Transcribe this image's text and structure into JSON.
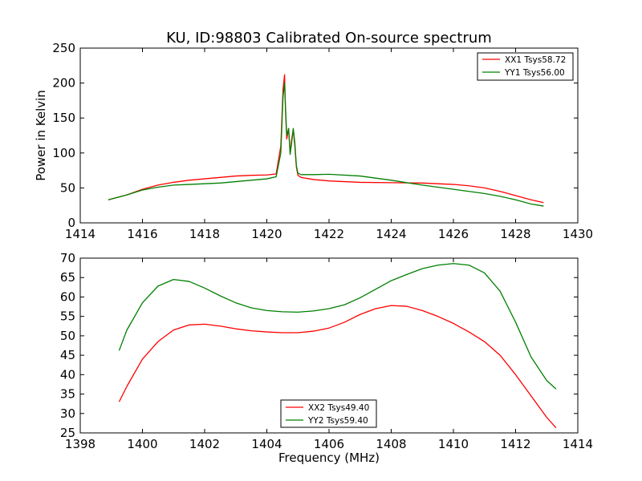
{
  "chart_data": [
    {
      "type": "line",
      "title": "KU, ID:98803 Calibrated On-source spectrum",
      "xlabel": "",
      "ylabel": "Power in Kelvin",
      "xlim": [
        1414,
        1430
      ],
      "ylim": [
        0,
        250
      ],
      "xticks": [
        1414,
        1416,
        1418,
        1420,
        1422,
        1424,
        1426,
        1428,
        1430
      ],
      "yticks": [
        0,
        50,
        100,
        150,
        200,
        250
      ],
      "legend_position": "top-right",
      "grid": false,
      "series": [
        {
          "name": "XX1 Tsys58.72",
          "color": "#ff0000",
          "x": [
            1414.9,
            1415.5,
            1416.0,
            1416.5,
            1417.0,
            1417.5,
            1418.0,
            1418.5,
            1419.0,
            1419.5,
            1420.0,
            1420.3,
            1420.45,
            1420.52,
            1420.57,
            1420.6,
            1420.64,
            1420.7,
            1420.75,
            1420.8,
            1420.85,
            1420.9,
            1420.95,
            1421.0,
            1421.1,
            1421.5,
            1422.0,
            1423.0,
            1424.0,
            1425.0,
            1426.0,
            1426.5,
            1427.0,
            1427.5,
            1428.0,
            1428.5,
            1428.9
          ],
          "y": [
            33,
            40,
            48,
            54,
            58,
            61,
            63,
            65,
            67,
            68,
            68.5,
            70,
            110,
            190,
            212,
            160,
            120,
            135,
            100,
            120,
            133,
            110,
            80,
            68,
            65,
            62,
            60,
            58,
            57.5,
            57,
            55,
            53,
            50,
            45,
            39,
            33,
            29
          ]
        },
        {
          "name": "YY1 Tsys56.00",
          "color": "#008000",
          "x": [
            1414.9,
            1415.5,
            1416.0,
            1416.5,
            1417.0,
            1417.5,
            1418.0,
            1418.5,
            1419.0,
            1419.5,
            1420.0,
            1420.3,
            1420.45,
            1420.52,
            1420.57,
            1420.6,
            1420.64,
            1420.7,
            1420.75,
            1420.8,
            1420.85,
            1420.9,
            1420.95,
            1421.0,
            1421.1,
            1421.5,
            1422.0,
            1423.0,
            1424.0,
            1425.0,
            1426.0,
            1426.5,
            1427.0,
            1427.5,
            1428.0,
            1428.5,
            1428.9
          ],
          "y": [
            33,
            40,
            47,
            51,
            54,
            55,
            56,
            57,
            59,
            61,
            63,
            66,
            100,
            180,
            200,
            165,
            125,
            135,
            98,
            115,
            135,
            115,
            82,
            71,
            69,
            69,
            69.5,
            67,
            61,
            54,
            48,
            45,
            42,
            38,
            33,
            27,
            24
          ]
        }
      ]
    },
    {
      "type": "line",
      "title": "",
      "xlabel": "Frequency (MHz)",
      "ylabel": "",
      "xlim": [
        1398,
        1414
      ],
      "ylim": [
        25,
        70
      ],
      "xticks": [
        1398,
        1400,
        1402,
        1404,
        1406,
        1408,
        1410,
        1412,
        1414
      ],
      "yticks": [
        25,
        30,
        35,
        40,
        45,
        50,
        55,
        60,
        65,
        70
      ],
      "legend_position": "bottom-center",
      "grid": false,
      "series": [
        {
          "name": "XX2 Tsys49.40",
          "color": "#ff0000",
          "x": [
            1399.25,
            1399.5,
            1400.0,
            1400.5,
            1401.0,
            1401.5,
            1402.0,
            1402.5,
            1403.0,
            1403.5,
            1404.0,
            1404.5,
            1405.0,
            1405.5,
            1406.0,
            1406.5,
            1407.0,
            1407.5,
            1408.0,
            1408.5,
            1409.0,
            1409.5,
            1410.0,
            1410.5,
            1411.0,
            1411.5,
            1412.0,
            1412.5,
            1413.0,
            1413.3
          ],
          "y": [
            33,
            37,
            44,
            48.5,
            51.5,
            52.8,
            53,
            52.5,
            51.8,
            51.3,
            51,
            50.8,
            50.8,
            51.2,
            52,
            53.5,
            55.5,
            57,
            57.8,
            57.6,
            56.5,
            55,
            53.2,
            51,
            48.5,
            45,
            40,
            34.5,
            29,
            26.3
          ]
        },
        {
          "name": "YY2 Tsys59.40",
          "color": "#008000",
          "x": [
            1399.25,
            1399.5,
            1400.0,
            1400.5,
            1401.0,
            1401.5,
            1402.0,
            1402.5,
            1403.0,
            1403.5,
            1404.0,
            1404.5,
            1405.0,
            1405.5,
            1406.0,
            1406.5,
            1407.0,
            1407.5,
            1408.0,
            1408.5,
            1409.0,
            1409.5,
            1410.0,
            1410.5,
            1411.0,
            1411.5,
            1412.0,
            1412.5,
            1413.0,
            1413.3
          ],
          "y": [
            46.2,
            51.5,
            58.5,
            62.8,
            64.5,
            64,
            62.3,
            60.3,
            58.5,
            57.2,
            56.5,
            56.2,
            56.1,
            56.4,
            57,
            58,
            59.8,
            62,
            64.2,
            65.8,
            67.3,
            68.2,
            68.6,
            68.2,
            66.2,
            61.5,
            53.5,
            44.5,
            38.5,
            36.3
          ]
        }
      ]
    }
  ]
}
